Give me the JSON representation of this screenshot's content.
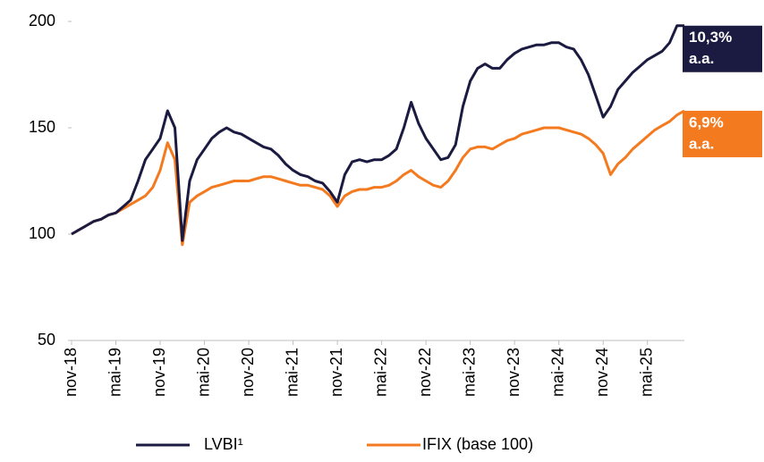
{
  "chart_data": {
    "type": "line",
    "categories": [
      "nov-18",
      null,
      null,
      null,
      null,
      null,
      "mai-19",
      null,
      null,
      null,
      null,
      null,
      "nov-19",
      null,
      null,
      null,
      null,
      null,
      "mai-20",
      null,
      null,
      null,
      null,
      null,
      "nov-20",
      null,
      null,
      null,
      null,
      null,
      "mai-21",
      null,
      null,
      null,
      null,
      null,
      "nov-21",
      null,
      null,
      null,
      null,
      null,
      "mai-22",
      null,
      null,
      null,
      null,
      null,
      "nov-22",
      null,
      null,
      null,
      null,
      null,
      "mai-23",
      null,
      null,
      null,
      null,
      null,
      "nov-23",
      null,
      null,
      null,
      null,
      null,
      "mai-24",
      null,
      null,
      null,
      null,
      null,
      "nov-24",
      null,
      null,
      null,
      null,
      null,
      "mai-25",
      null,
      null,
      null,
      null,
      null
    ],
    "series": [
      {
        "name": "LVBI¹",
        "color": "#1b1a40",
        "values": [
          100,
          102,
          104,
          106,
          107,
          109,
          110,
          113,
          116,
          125,
          135,
          140,
          145,
          158,
          150,
          97,
          125,
          135,
          140,
          145,
          148,
          150,
          148,
          147,
          145,
          143,
          141,
          140,
          137,
          133,
          130,
          128,
          127,
          125,
          124,
          120,
          115,
          128,
          134,
          135,
          134,
          135,
          135,
          137,
          140,
          150,
          162,
          152,
          145,
          140,
          135,
          136,
          142,
          160,
          172,
          178,
          180,
          178,
          178,
          182,
          185,
          187,
          188,
          189,
          189,
          190,
          190,
          188,
          187,
          182,
          175,
          165,
          155,
          160,
          168,
          172,
          176,
          179,
          182,
          184,
          186,
          190,
          198,
          198
        ]
      },
      {
        "name": "IFIX (base 100)",
        "color": "#f47a20",
        "values": [
          100,
          102,
          104,
          106,
          107,
          109,
          110,
          112,
          114,
          116,
          118,
          122,
          130,
          143,
          135,
          95,
          115,
          118,
          120,
          122,
          123,
          124,
          125,
          125,
          125,
          126,
          127,
          127,
          126,
          125,
          124,
          123,
          123,
          122,
          121,
          118,
          113,
          118,
          120,
          121,
          121,
          122,
          122,
          123,
          125,
          128,
          130,
          127,
          125,
          123,
          122,
          125,
          130,
          136,
          140,
          141,
          141,
          140,
          142,
          144,
          145,
          147,
          148,
          149,
          150,
          150,
          150,
          149,
          148,
          147,
          145,
          142,
          138,
          128,
          133,
          136,
          140,
          143,
          146,
          149,
          151,
          153,
          156,
          158
        ]
      }
    ],
    "ylim": [
      50,
      200
    ],
    "yticks": [
      50,
      100,
      150,
      200
    ],
    "annotations": [
      {
        "lines": [
          "10,3%",
          "a.a."
        ],
        "color": "#1b1a40"
      },
      {
        "lines": [
          "6,9%",
          "a.a."
        ],
        "color": "#f47a20"
      }
    ]
  }
}
